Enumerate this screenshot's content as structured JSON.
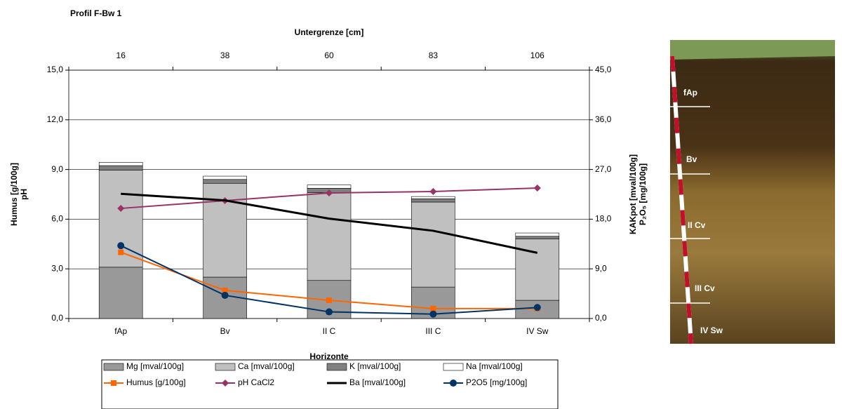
{
  "chart_data": {
    "type": "bar",
    "title": "Profil F-Bw 1",
    "x_label": "Horizonte",
    "x2_label": "Untergrenze [cm]",
    "y_label": [
      "Humus [g/100g]",
      "pH"
    ],
    "y2_label": [
      "KAKpot [mval/100g]",
      "P₂O₅ [mg/100g]"
    ],
    "categories": [
      "fAp",
      "Bv",
      "II C",
      "III C",
      "IV Sw"
    ],
    "x2_categories": [
      "16",
      "38",
      "60",
      "83",
      "106"
    ],
    "ylim": [
      0,
      15
    ],
    "yticks": [
      {
        "value": 0,
        "label": "0,0"
      },
      {
        "value": 3,
        "label": "3,0"
      },
      {
        "value": 6,
        "label": "6,0"
      },
      {
        "value": 9,
        "label": "9,0"
      },
      {
        "value": 12,
        "label": "12,0"
      },
      {
        "value": 15,
        "label": "15,0"
      }
    ],
    "y2lim": [
      0,
      45
    ],
    "y2ticks": [
      {
        "value": 0,
        "label": "0,0"
      },
      {
        "value": 9,
        "label": "9,0"
      },
      {
        "value": 18,
        "label": "18,0"
      },
      {
        "value": 27,
        "label": "27,0"
      },
      {
        "value": 36,
        "label": "36,0"
      },
      {
        "value": 45,
        "label": "45,0"
      }
    ],
    "grid": true,
    "series": [
      {
        "name": "Mg [mval/100g]",
        "type": "bar",
        "axis": "y2",
        "color": "#999999",
        "values": [
          9.3,
          7.5,
          6.9,
          5.7,
          3.3
        ]
      },
      {
        "name": "Ca [mval/100g]",
        "type": "bar",
        "axis": "y2",
        "color": "#c0c0c0",
        "values": [
          17.6,
          17.0,
          15.9,
          15.4,
          11.1
        ]
      },
      {
        "name": "K [mval/100g]",
        "type": "bar",
        "axis": "y2",
        "color": "#808080",
        "values": [
          0.8,
          0.7,
          0.8,
          0.6,
          0.5
        ]
      },
      {
        "name": "Na [mval/100g]",
        "type": "bar",
        "axis": "y2",
        "color": "#ffffff",
        "values": [
          0.6,
          0.6,
          0.6,
          0.4,
          0.6
        ]
      },
      {
        "name": "Humus [g/100g]",
        "type": "line",
        "marker": "square",
        "color": "#ff6600",
        "values": [
          4.0,
          1.7,
          1.1,
          0.6,
          0.6
        ]
      },
      {
        "name": "pH CaCl2",
        "type": "line",
        "marker": "diamond",
        "color": "#993366",
        "values": [
          6.65,
          7.12,
          7.58,
          7.67,
          7.88
        ]
      },
      {
        "name": "Ba [mval/100g]",
        "type": "line",
        "marker": "none",
        "axis": "y2",
        "color": "#000000",
        "values": [
          22.6,
          21.4,
          18.1,
          15.9,
          11.9
        ]
      },
      {
        "name": "P2O5 [mg/100g]",
        "type": "line",
        "marker": "circle",
        "axis": "y2",
        "color": "#003366",
        "values": [
          13.2,
          4.2,
          1.2,
          0.8,
          2.0
        ]
      }
    ]
  },
  "photo": {
    "labels": [
      "fAp",
      "Bv",
      "II Cv",
      "III Cv",
      "IV Sw"
    ]
  }
}
